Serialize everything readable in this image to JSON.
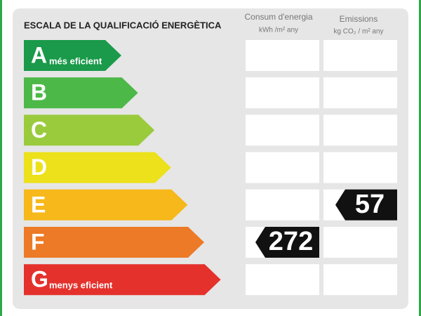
{
  "header": {
    "title": "ESCALA DE LA QUALIFICACIÓ ENERGÈTICA",
    "columns": [
      {
        "name": "Consum d'energia",
        "unit": "kWh /m² any"
      },
      {
        "name": "Emissions",
        "unit": "kg CO₂ / m² any"
      }
    ]
  },
  "rows": [
    {
      "letter": "A",
      "label": "més eficient",
      "color": "#1a9a4a"
    },
    {
      "letter": "B",
      "color": "#4cb848"
    },
    {
      "letter": "C",
      "color": "#9acb3c"
    },
    {
      "letter": "D",
      "color": "#ece11a"
    },
    {
      "letter": "E",
      "color": "#f6b81a",
      "emissions": 57
    },
    {
      "letter": "F",
      "color": "#ec7a26",
      "consum": 272
    },
    {
      "letter": "G",
      "label": "menys eficient",
      "color": "#e4312c"
    }
  ]
}
